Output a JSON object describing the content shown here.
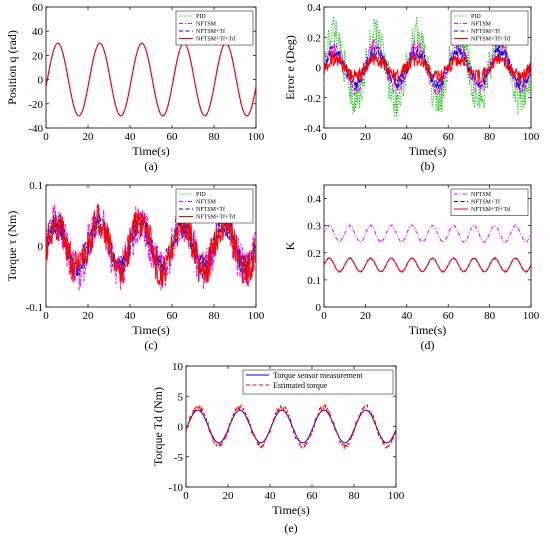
{
  "chart_data": [
    {
      "type": "line",
      "panel": "(a)",
      "xlabel": "Time(s)",
      "ylabel": "Position q (rad)",
      "xlim": [
        0,
        100
      ],
      "ylim": [
        -40,
        60
      ],
      "xticks": [
        0,
        20,
        40,
        60,
        80,
        100
      ],
      "yticks": [
        -40,
        -20,
        0,
        20,
        40,
        60
      ],
      "legend": "top-right",
      "series": [
        {
          "name": "PID",
          "color": "#00c800",
          "dash": "dotted",
          "amplitude": 30,
          "period": 20,
          "noise": 0
        },
        {
          "name": "NFTSM",
          "color": "#ff00ff",
          "dash": "dashdot",
          "amplitude": 30,
          "period": 20,
          "noise": 0
        },
        {
          "name": "NFTSM+Tf",
          "color": "#0000ff",
          "dash": "dashed",
          "amplitude": 30,
          "period": 20,
          "noise": 0
        },
        {
          "name": "NFTSM+Tf+Td",
          "color": "#ff0000",
          "dash": "solid",
          "amplitude": 30,
          "period": 20,
          "noise": 0
        }
      ]
    },
    {
      "type": "line",
      "panel": "(b)",
      "xlabel": "Time(s)",
      "ylabel": "Error e (Deg)",
      "xlim": [
        0,
        100
      ],
      "ylim": [
        -0.4,
        0.4
      ],
      "xticks": [
        0,
        20,
        40,
        60,
        80,
        100
      ],
      "yticks": [
        -0.4,
        -0.2,
        0,
        0.2,
        0.4
      ],
      "legend": "top-right",
      "series": [
        {
          "name": "PID",
          "color": "#00c800",
          "dash": "dotted",
          "amplitude": 0.22,
          "period": 20,
          "noise": 0.12
        },
        {
          "name": "NFTSM",
          "color": "#ff00ff",
          "dash": "dashdot",
          "amplitude": 0.14,
          "period": 20,
          "noise": 0.05
        },
        {
          "name": "NFTSM+Tf",
          "color": "#0000ff",
          "dash": "dashed",
          "amplitude": 0.1,
          "period": 20,
          "noise": 0.05
        },
        {
          "name": "NFTSM+Tf+Td",
          "color": "#ff0000",
          "dash": "solid",
          "amplitude": 0.06,
          "period": 20,
          "noise": 0.05
        }
      ]
    },
    {
      "type": "line",
      "panel": "(c)",
      "xlabel": "Time(s)",
      "ylabel": "Torque τ (Nm)",
      "xlim": [
        0,
        100
      ],
      "ylim": [
        -0.1,
        0.1
      ],
      "xticks": [
        0,
        20,
        40,
        60,
        80,
        100
      ],
      "yticks": [
        -0.1,
        0,
        0.1
      ],
      "legend": "top-right",
      "series": [
        {
          "name": "PID",
          "color": "#00c800",
          "dash": "dotted",
          "amplitude": 0.035,
          "period": 20,
          "noise": 0.015
        },
        {
          "name": "NFTSM",
          "color": "#ff00ff",
          "dash": "dashdot",
          "amplitude": 0.04,
          "period": 20,
          "noise": 0.035
        },
        {
          "name": "NFTSM+Tf",
          "color": "#0000ff",
          "dash": "dashed",
          "amplitude": 0.035,
          "period": 20,
          "noise": 0.02
        },
        {
          "name": "NFTSM+Tf+Td",
          "color": "#ff0000",
          "dash": "solid",
          "amplitude": 0.04,
          "period": 20,
          "noise": 0.03
        }
      ]
    },
    {
      "type": "line",
      "panel": "(d)",
      "xlabel": "Time(s)",
      "ylabel": "K",
      "xlim": [
        0,
        100
      ],
      "ylim": [
        0,
        0.45
      ],
      "xticks": [
        0,
        20,
        40,
        60,
        80,
        100
      ],
      "yticks": [
        0,
        0.1,
        0.2,
        0.3,
        0.4
      ],
      "legend": "top-right",
      "series": [
        {
          "name": "NFTSM",
          "color": "#ff00ff",
          "dash": "dashdot",
          "offset": 0.27,
          "amplitude": 0.03,
          "period": 10,
          "noise": 0.003
        },
        {
          "name": "NFTSM+Tf",
          "color": "#0000ff",
          "dash": "dashed",
          "offset": 0.155,
          "amplitude": 0.025,
          "period": 10,
          "noise": 0.002
        },
        {
          "name": "NFTSM+Tf+Td",
          "color": "#ff0000",
          "dash": "solid",
          "offset": 0.155,
          "amplitude": 0.025,
          "period": 10,
          "noise": 0.002
        }
      ]
    },
    {
      "type": "line",
      "panel": "(e)",
      "xlabel": "Time(s)",
      "ylabel": "Torque Td (Nm)",
      "xlim": [
        0,
        100
      ],
      "ylim": [
        -10,
        10
      ],
      "xticks": [
        0,
        20,
        40,
        60,
        80,
        100
      ],
      "yticks": [
        -10,
        -5,
        0,
        5,
        10
      ],
      "legend": "top-right",
      "series": [
        {
          "name": "Torque sensor measurement",
          "color": "#0000ff",
          "dash": "solid",
          "amplitude": 2.7,
          "period": 20,
          "noise": 0
        },
        {
          "name": "Estimated torque",
          "color": "#ff0000",
          "dash": "dashed",
          "amplitude": 3.2,
          "period": 20,
          "noise": 0.5
        }
      ]
    }
  ]
}
